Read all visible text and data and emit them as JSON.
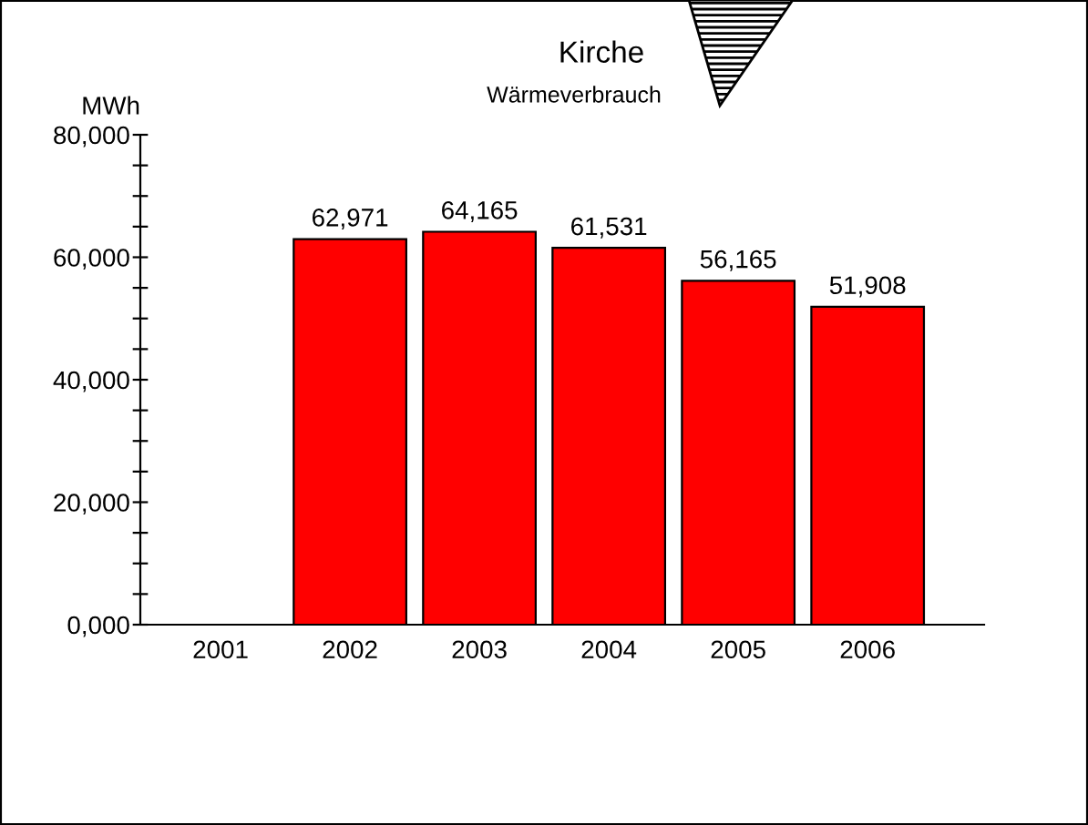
{
  "chart_data": {
    "type": "bar",
    "title": "Kirche",
    "subtitle": "Wärmeverbrauch",
    "ylabel": "MWh",
    "categories": [
      "2001",
      "2002",
      "2003",
      "2004",
      "2005",
      "2006"
    ],
    "values": [
      null,
      62971,
      64165,
      61531,
      56165,
      51908
    ],
    "value_labels": [
      null,
      "62,971",
      "64,165",
      "61,531",
      "56,165",
      "51,908"
    ],
    "color": "#ff0000",
    "ylim": [
      0,
      80000
    ],
    "yticks": [
      {
        "value": 0,
        "label": "0,000"
      },
      {
        "value": 5000,
        "label": null
      },
      {
        "value": 10000,
        "label": null
      },
      {
        "value": 15000,
        "label": null
      },
      {
        "value": 20000,
        "label": "20,000"
      },
      {
        "value": 25000,
        "label": null
      },
      {
        "value": 30000,
        "label": null
      },
      {
        "value": 35000,
        "label": null
      },
      {
        "value": 40000,
        "label": "40,000"
      },
      {
        "value": 45000,
        "label": null
      },
      {
        "value": 50000,
        "label": null
      },
      {
        "value": 55000,
        "label": null
      },
      {
        "value": 60000,
        "label": "60,000"
      },
      {
        "value": 65000,
        "label": null
      },
      {
        "value": 70000,
        "label": null
      },
      {
        "value": 75000,
        "label": null
      },
      {
        "value": 80000,
        "label": "80,000"
      }
    ],
    "grid": false,
    "legend": false
  }
}
